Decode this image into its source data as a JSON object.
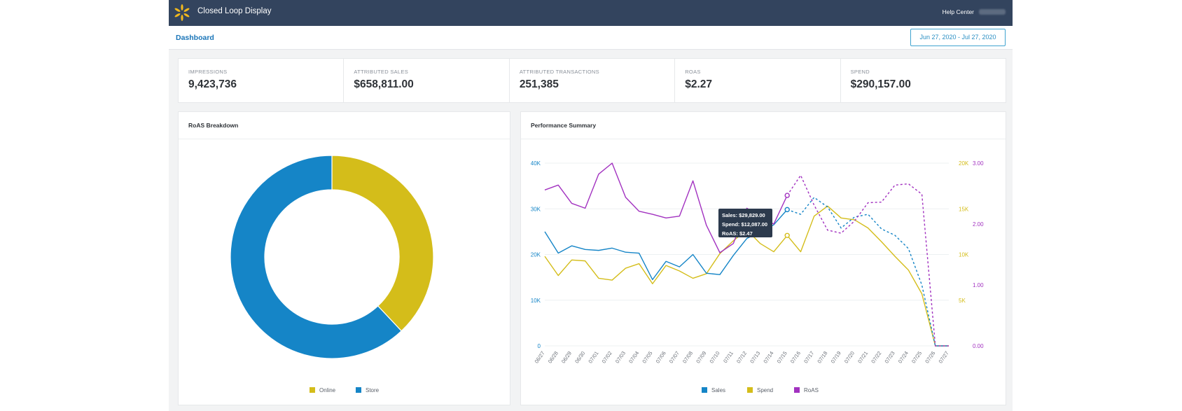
{
  "header": {
    "app_title": "Closed Loop Display",
    "help_label": "Help Center"
  },
  "subheader": {
    "breadcrumb": "Dashboard",
    "date_range": "Jun 27, 2020 - Jul 27, 2020"
  },
  "metrics": [
    {
      "label": "IMPRESSIONS",
      "value": "9,423,736"
    },
    {
      "label": "ATTRIBUTED SALES",
      "value": "$658,811.00"
    },
    {
      "label": "ATTRIBUTED TRANSACTIONS",
      "value": "251,385"
    },
    {
      "label": "ROAS",
      "value": "$2.27"
    },
    {
      "label": "SPEND",
      "value": "$290,157.00"
    }
  ],
  "colors": {
    "topbar": "#33445e",
    "sales": "#1585c7",
    "spend": "#d4bd1a",
    "roas": "#a232c0",
    "link": "#1a75b8"
  },
  "roas_card": {
    "title": "RoAS Breakdown",
    "legend": [
      {
        "label": "Online",
        "color": "#d4bd1a"
      },
      {
        "label": "Store",
        "color": "#1585c7"
      }
    ]
  },
  "perf_card": {
    "title": "Performance Summary",
    "legend": [
      {
        "label": "Sales",
        "color": "#1585c7"
      },
      {
        "label": "Spend",
        "color": "#d4bd1a"
      },
      {
        "label": "RoAS",
        "color": "#a232c0"
      }
    ],
    "tooltip": {
      "sales": "Sales: $29,829.00",
      "spend": "Spend: $12,087.00",
      "roas": "RoAS: $2.47"
    }
  },
  "chart_data": [
    {
      "type": "pie",
      "title": "RoAS Breakdown",
      "categories": [
        "Online",
        "Store"
      ],
      "values": [
        38,
        62
      ]
    },
    {
      "type": "line",
      "title": "Performance Summary",
      "x": [
        "06/27",
        "06/28",
        "06/29",
        "06/30",
        "07/01",
        "07/02",
        "07/03",
        "07/04",
        "07/05",
        "07/06",
        "07/07",
        "07/08",
        "07/09",
        "07/10",
        "07/11",
        "07/12",
        "07/13",
        "07/14",
        "07/15",
        "07/16",
        "07/17",
        "07/18",
        "07/19",
        "07/20",
        "07/21",
        "07/22",
        "07/23",
        "07/24",
        "07/25",
        "07/26",
        "07/27"
      ],
      "y_left": {
        "ticks": [
          "0",
          "10K",
          "20K",
          "30K",
          "40K"
        ],
        "ylim": [
          0,
          40000
        ]
      },
      "y_right_spend": {
        "ticks": [
          "5K",
          "10K",
          "15K",
          "20K"
        ],
        "ylim": [
          0,
          20000
        ]
      },
      "y_right_roas": {
        "ticks": [
          "0.00",
          "1.00",
          "2.00",
          "3.00"
        ],
        "ylim": [
          0,
          3
        ]
      },
      "series": [
        {
          "name": "Sales",
          "axis": "left",
          "values": [
            25000,
            20300,
            21900,
            21100,
            20900,
            21400,
            20500,
            20300,
            14500,
            18500,
            17300,
            20000,
            15900,
            15600,
            19800,
            23500,
            25000,
            26500,
            29829,
            28800,
            32500,
            30400,
            25800,
            28200,
            28800,
            25600,
            24200,
            21300,
            13300,
            0,
            0
          ]
        },
        {
          "name": "Spend",
          "axis": "right",
          "values": [
            9800,
            7700,
            9400,
            9300,
            7400,
            7200,
            8500,
            9000,
            6800,
            8800,
            8200,
            7400,
            7900,
            10100,
            11500,
            12700,
            11200,
            10300,
            12087,
            10300,
            14200,
            15300,
            14000,
            13800,
            12900,
            11400,
            9800,
            8300,
            5700,
            0,
            0
          ]
        },
        {
          "name": "RoAS",
          "axis": "right",
          "values": [
            2.56,
            2.64,
            2.34,
            2.26,
            2.82,
            3.0,
            2.44,
            2.21,
            2.16,
            2.1,
            2.13,
            2.71,
            1.98,
            1.53,
            1.68,
            2.26,
            2.13,
            2.0,
            2.47,
            2.8,
            2.31,
            1.9,
            1.85,
            2.05,
            2.35,
            2.36,
            2.64,
            2.66,
            2.49,
            0,
            0
          ]
        }
      ]
    }
  ]
}
